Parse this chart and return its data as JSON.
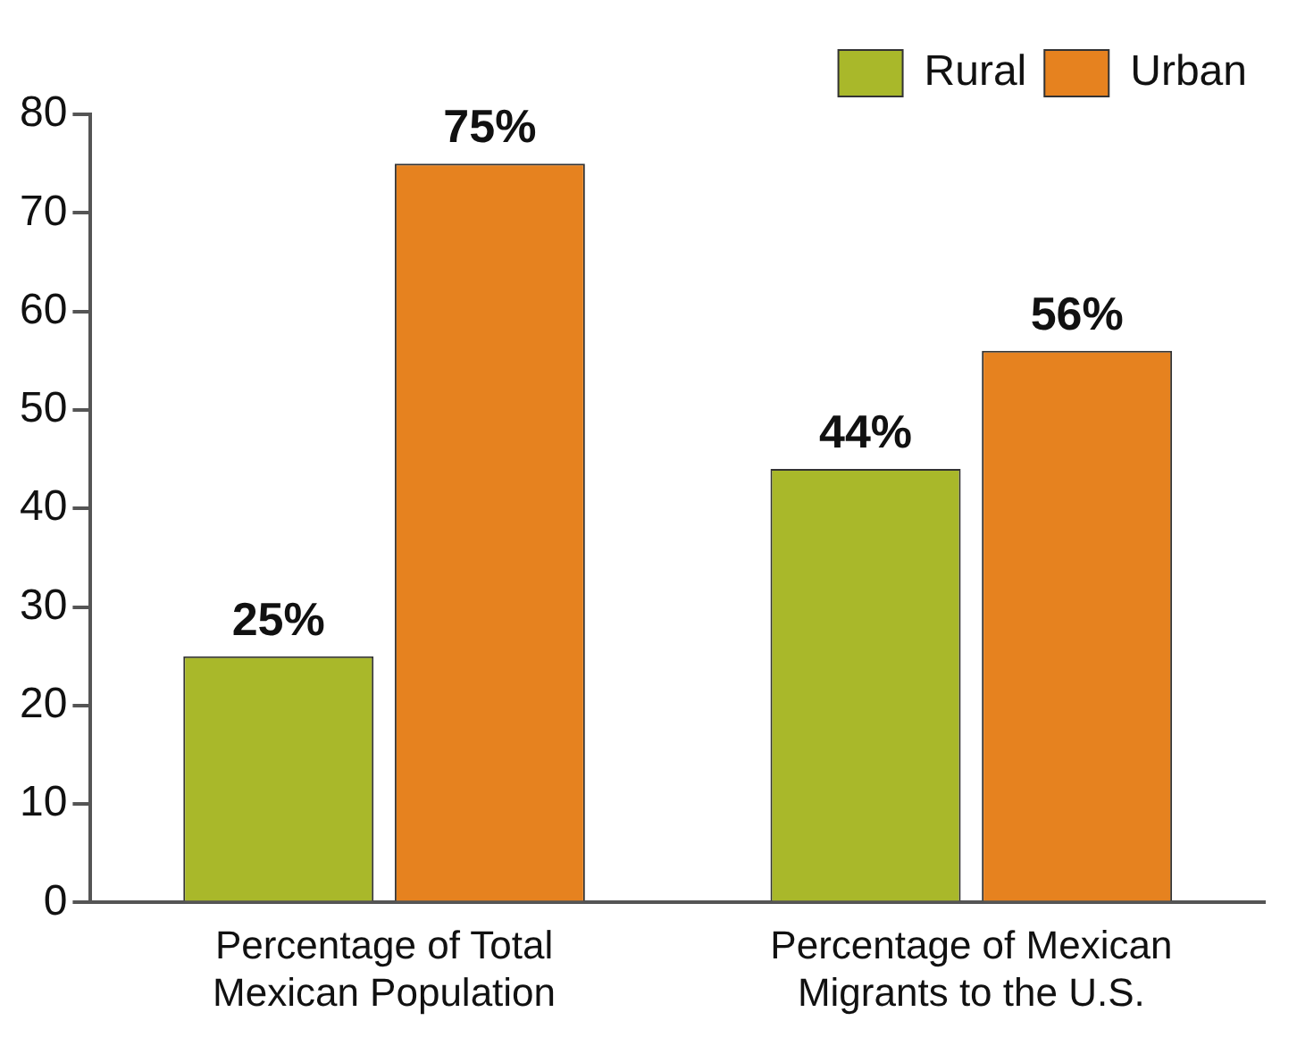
{
  "chart_data": {
    "type": "bar",
    "categories": [
      "Percentage of Total Mexican Population",
      "Percentage of Mexican Migrants to the U.S."
    ],
    "series": [
      {
        "name": "Rural",
        "color": "#a9b82a",
        "values": [
          25,
          44
        ],
        "value_labels": [
          "25%",
          "44%"
        ]
      },
      {
        "name": "Urban",
        "color": "#e6821f",
        "values": [
          75,
          56
        ],
        "value_labels": [
          "75%",
          "56%"
        ]
      }
    ],
    "ylim": [
      0,
      80
    ],
    "yticks": [
      0,
      10,
      20,
      30,
      40,
      50,
      60,
      70,
      80
    ],
    "grid": false,
    "legend": "top right"
  }
}
